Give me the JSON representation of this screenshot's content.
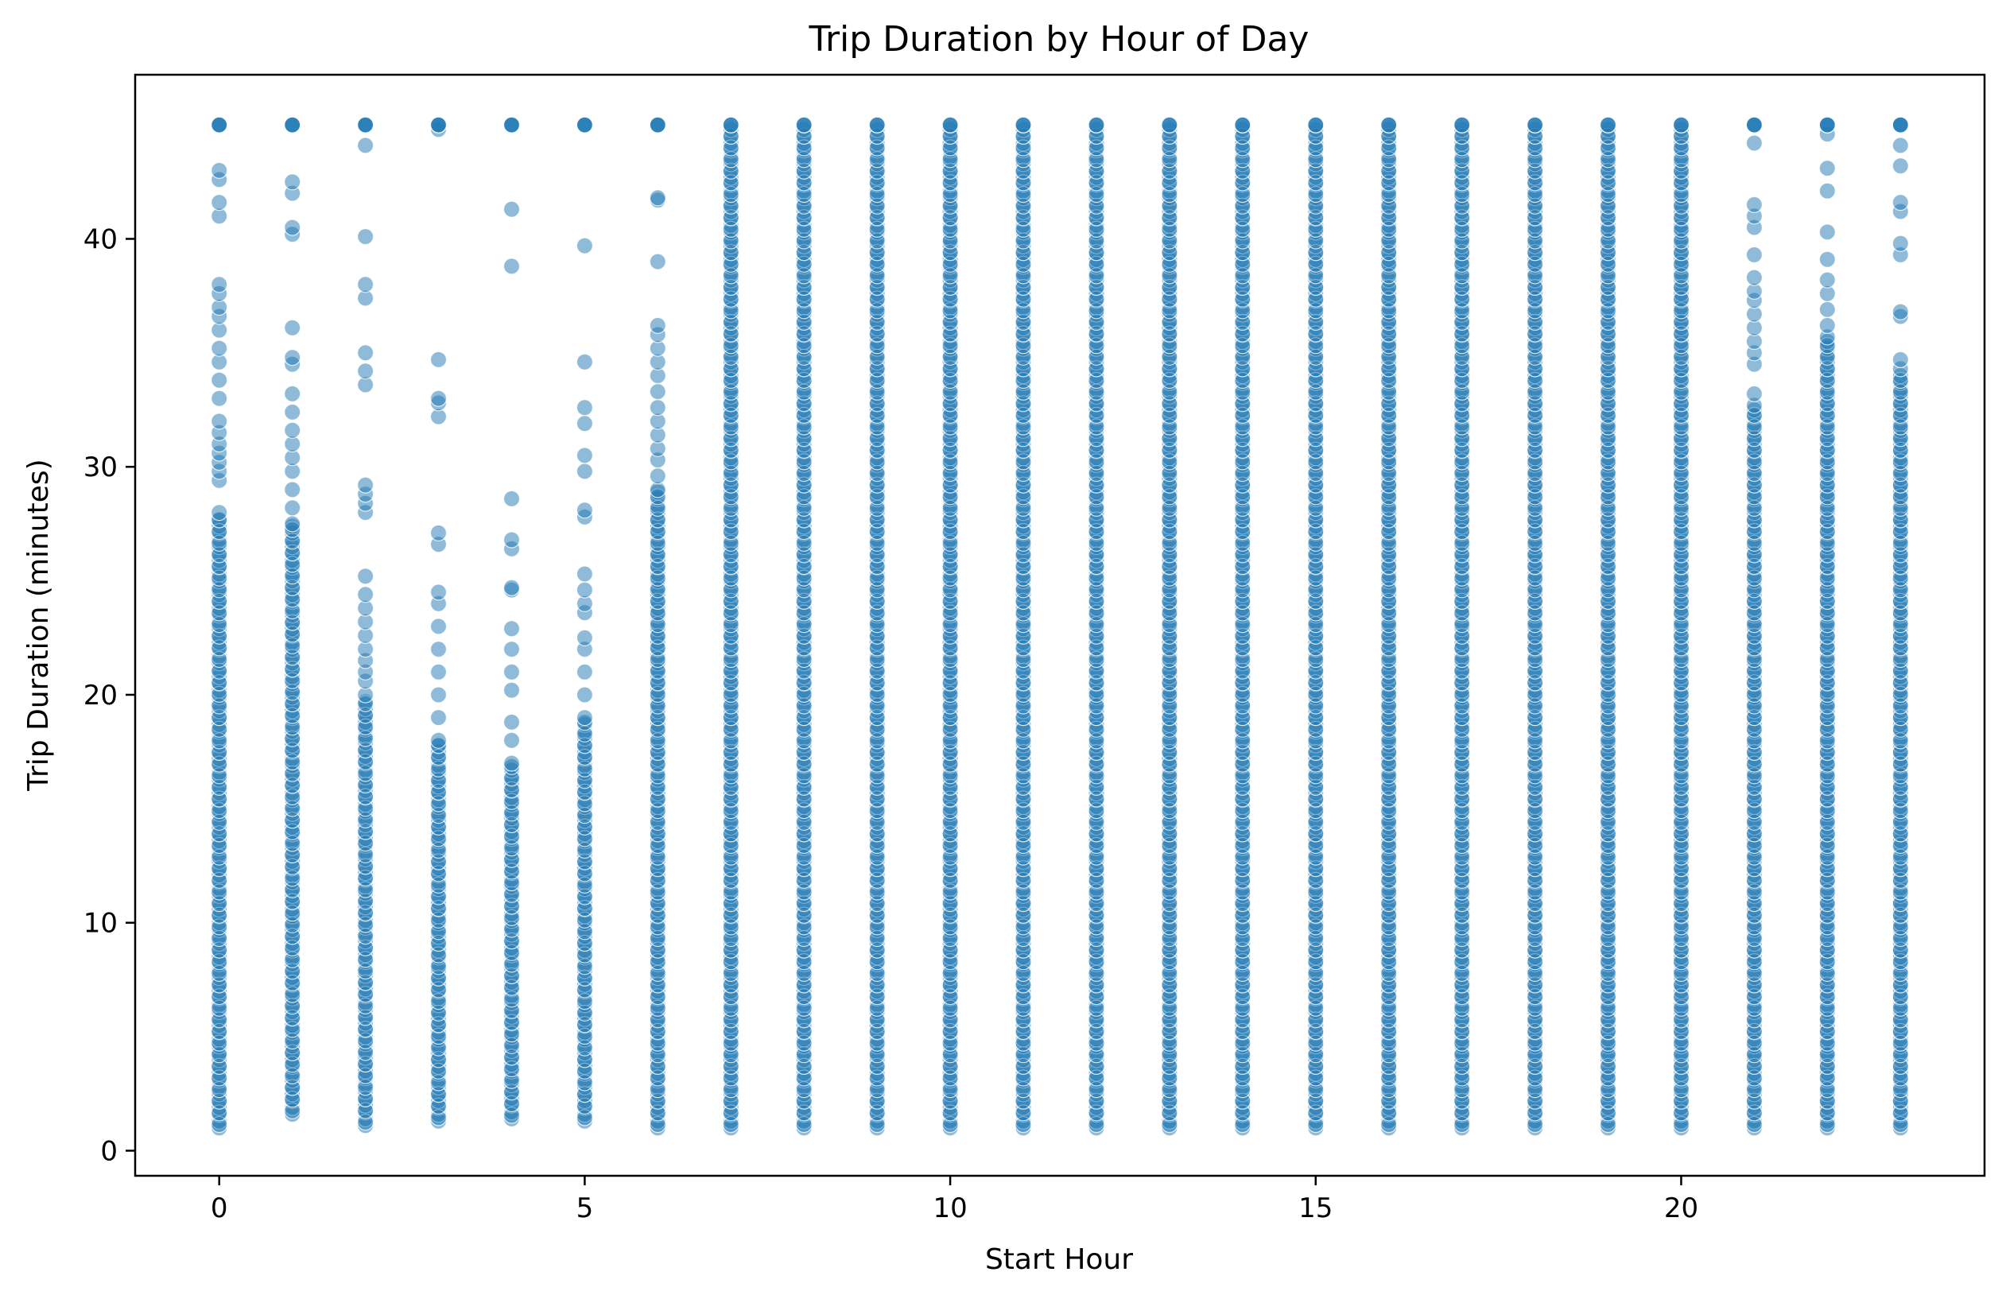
{
  "chart_data": {
    "type": "scatter",
    "title": "Trip Duration by Hour of Day",
    "xlabel": "Start Hour",
    "ylabel": "Trip Duration (minutes)",
    "xlim": [
      -1.15,
      24.15
    ],
    "ylim": [
      -1.1,
      47.2
    ],
    "xticks": [
      0,
      5,
      10,
      15,
      20
    ],
    "yticks": [
      0,
      10,
      20,
      30,
      40
    ],
    "grid": false,
    "legend": "none",
    "marker_color": "#1f77b4",
    "marker_opacity": 0.5,
    "x": [
      0,
      1,
      2,
      3,
      4,
      5,
      6,
      7,
      8,
      9,
      10,
      11,
      12,
      13,
      14,
      15,
      16,
      17,
      18,
      19,
      20,
      21,
      22,
      23
    ],
    "duration_min": [
      1,
      1.6,
      1.1,
      1.3,
      1.4,
      1.3,
      1,
      1,
      1,
      1,
      1,
      1,
      1,
      1,
      1,
      1,
      1,
      1,
      1,
      1,
      1,
      1,
      1,
      1
    ],
    "duration_max": [
      45,
      45,
      45,
      45,
      45,
      45,
      45,
      45,
      45,
      45,
      45,
      45,
      45,
      45,
      45,
      45,
      45,
      45,
      45,
      45,
      45,
      45,
      45,
      45
    ],
    "sparse_points": [
      {
        "x": 0,
        "y": [
          28,
          29.4,
          29.8,
          30.2,
          30.6,
          31,
          31.5,
          32,
          33,
          33.8,
          34.6,
          35.2,
          36,
          36.6,
          37,
          37.6,
          38,
          41,
          41.6,
          42.6,
          43,
          45
        ]
      },
      {
        "x": 1,
        "y": [
          27.5,
          28.2,
          29,
          29.8,
          30.4,
          31,
          31.6,
          32.4,
          33.2,
          34.5,
          34.8,
          36.1,
          40.2,
          40.5,
          42,
          42.5,
          45
        ]
      },
      {
        "x": 2,
        "y": [
          20,
          20.6,
          21,
          21.5,
          22,
          22.6,
          23.2,
          23.8,
          24.4,
          25.2,
          28,
          28.4,
          28.8,
          29.2,
          33.6,
          34.2,
          35,
          37.4,
          38,
          40.1,
          44.1,
          45
        ]
      },
      {
        "x": 3,
        "y": [
          18,
          19,
          20,
          21,
          22,
          23,
          24,
          24.5,
          26.6,
          27.1,
          32.2,
          32.8,
          33,
          34.7,
          44.8,
          45
        ]
      },
      {
        "x": 4,
        "y": [
          17,
          18,
          18.8,
          20.2,
          21,
          22,
          22.9,
          24.6,
          24.7,
          26.4,
          26.8,
          28.6,
          38.8,
          41.3,
          45
        ]
      },
      {
        "x": 5,
        "y": [
          19,
          20,
          21,
          22,
          22.5,
          23.6,
          24,
          24.6,
          25.3,
          27.8,
          28.1,
          29.8,
          30.5,
          31.9,
          32.6,
          34.6,
          39.7,
          45
        ]
      },
      {
        "x": 6,
        "y": [
          29,
          29.6,
          30.3,
          30.8,
          31.4,
          32,
          32.6,
          33.3,
          34,
          34.6,
          35.2,
          35.8,
          36.2,
          39,
          41.7,
          41.8,
          45
        ]
      },
      {
        "x": 21,
        "y": [
          32.7,
          33.2,
          34.5,
          35,
          35.5,
          36.1,
          36.7,
          37.3,
          37.7,
          38.3,
          39.3,
          40.5,
          41,
          41.5,
          44.2,
          45
        ]
      },
      {
        "x": 22,
        "y": [
          35.7,
          36.2,
          36.9,
          37.6,
          38.2,
          39.1,
          40.3,
          42.1,
          43.1,
          44.6,
          45
        ]
      },
      {
        "x": 23,
        "y": [
          34.3,
          34.7,
          36.6,
          36.8,
          39.3,
          39.8,
          41.2,
          41.6,
          43.2,
          44.1,
          45
        ]
      }
    ]
  }
}
